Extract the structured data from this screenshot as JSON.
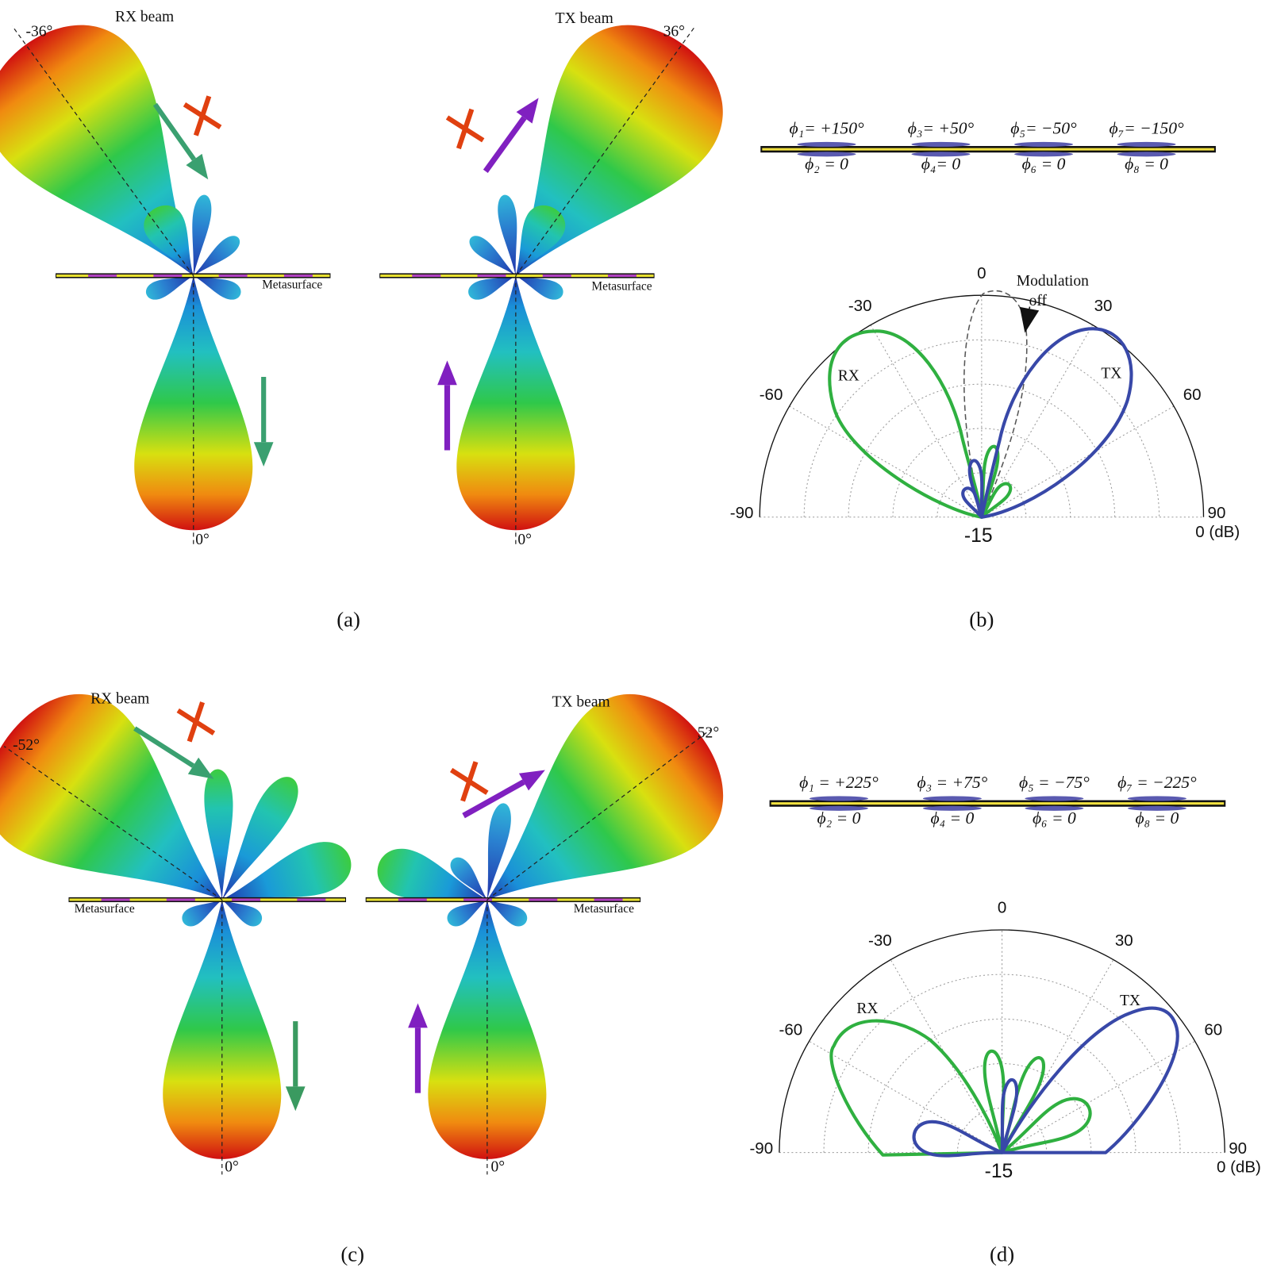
{
  "figure": {
    "captions": [
      "(a)",
      "(b)",
      "(c)",
      "(d)"
    ],
    "panel_a": {
      "rx_title": "RX beam",
      "tx_title": "TX beam",
      "rx_angle": "-36°",
      "tx_angle": "36°",
      "rx_zero": "0°",
      "tx_zero": "0°",
      "rx_surface": "Metasurface",
      "tx_surface": "Metasurface"
    },
    "panel_b": {
      "phases_top": [
        "ϕ₁= +150°",
        "ϕ₃= +50°",
        "ϕ₅= −50°",
        "ϕ₇= −150°"
      ],
      "phases_bottom": [
        "ϕ₂ = 0",
        "ϕ₄= 0",
        "ϕ₆ = 0",
        "ϕ₈ = 0"
      ],
      "polar": {
        "angle_labels": [
          "-90",
          "-60",
          "-30",
          "0",
          "30",
          "60",
          "90"
        ],
        "center_label": "-15",
        "edge_label": "0 (dB)",
        "rx": "RX",
        "tx": "TX",
        "annotation": [
          "Modulation",
          "off"
        ]
      }
    },
    "panel_c": {
      "rx_title": "RX beam",
      "tx_title": "TX beam",
      "rx_angle": "-52°",
      "tx_angle": "52°",
      "rx_zero": "0°",
      "tx_zero": "0°",
      "rx_surface": "Metasurface",
      "tx_surface": "Metasurface"
    },
    "panel_d": {
      "phases_top": [
        "ϕ₁ = +225°",
        "ϕ₃ = +75°",
        "ϕ₅ = −75°",
        "ϕ₇ = −225°"
      ],
      "phases_bottom": [
        "ϕ₂ = 0",
        "ϕ₄ = 0",
        "ϕ₆ = 0",
        "ϕ₈ = 0"
      ],
      "polar": {
        "angle_labels": [
          "-90",
          "-60",
          "-30",
          "0",
          "30",
          "60",
          "90"
        ],
        "center_label": "-15",
        "edge_label": "0 (dB)",
        "rx": "RX",
        "tx": "TX"
      }
    }
  }
}
